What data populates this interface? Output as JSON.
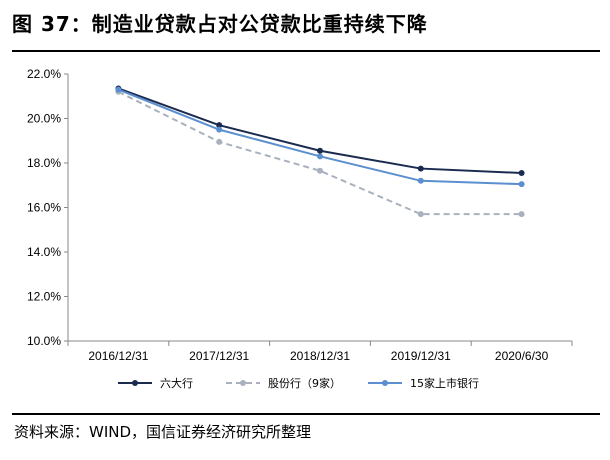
{
  "title": "图 37：制造业贷款占对公贷款比重持续下降",
  "source": "资料来源：WIND，国信证券经济研究所整理",
  "chart_data": {
    "type": "line",
    "categories": [
      "2016/12/31",
      "2017/12/31",
      "2018/12/31",
      "2019/12/31",
      "2020/6/30"
    ],
    "ylim": [
      10.0,
      22.0
    ],
    "yticks": [
      "10.0%",
      "12.0%",
      "14.0%",
      "16.0%",
      "18.0%",
      "20.0%",
      "22.0%"
    ],
    "grid": false,
    "legend_position": "bottom",
    "series": [
      {
        "name": "六大行",
        "values": [
          21.35,
          19.7,
          18.55,
          17.75,
          17.55
        ],
        "color": "#1a2b4f",
        "dash": false
      },
      {
        "name": "股份行（9家）",
        "values": [
          21.2,
          18.95,
          17.65,
          15.7,
          15.7
        ],
        "color": "#a8b1bd",
        "dash": true
      },
      {
        "name": "15家上市银行",
        "values": [
          21.3,
          19.5,
          18.3,
          17.2,
          17.05
        ],
        "color": "#5b8fcf",
        "dash": false
      }
    ]
  }
}
